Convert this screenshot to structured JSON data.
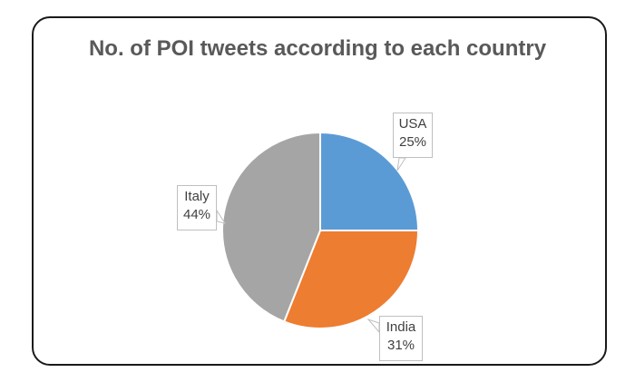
{
  "chart_data": {
    "type": "pie",
    "title": "No. of POI tweets according to each country",
    "categories": [
      "USA",
      "India",
      "Italy"
    ],
    "values": [
      25,
      31,
      44
    ],
    "value_labels": [
      "25%",
      "31%",
      "44%"
    ],
    "colors": [
      "#5b9bd5",
      "#ed7d31",
      "#a5a5a5"
    ],
    "start_angle": "12 o'clock, clockwise",
    "legend": "none (data callouts)"
  }
}
